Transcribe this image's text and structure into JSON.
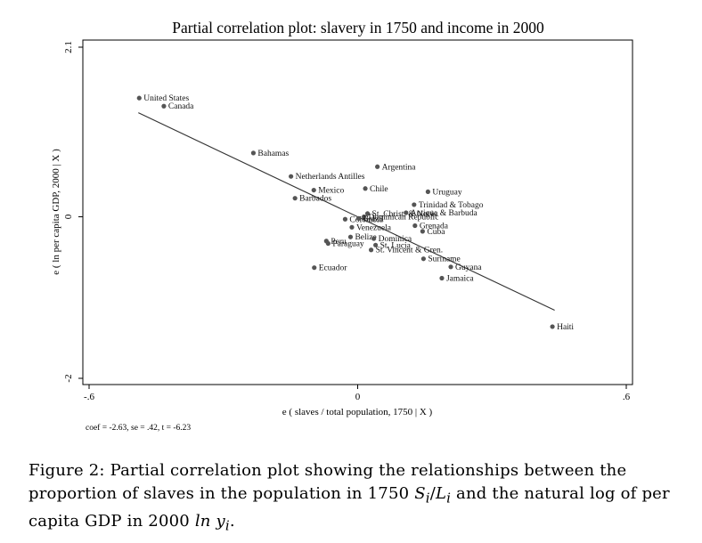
{
  "chart_data": {
    "type": "scatter",
    "title": "Partial correlation plot: slavery in 1750 and income in 2000",
    "xlabel": "e ( slaves / total population, 1750 | X )",
    "ylabel": "e ( ln per capita GDP, 2000 | X )",
    "xlim": [
      -0.6,
      0.6
    ],
    "ylim": [
      -2,
      2.1
    ],
    "xticks": [
      -0.6,
      0,
      0.6
    ],
    "xtick_labels": [
      "-.6",
      "0",
      ".6"
    ],
    "yticks": [
      -2,
      0,
      2.1
    ],
    "ytick_labels": [
      "-2",
      "0",
      "2.1"
    ],
    "grid": false,
    "fit_line": {
      "slope": -2.63,
      "x_start": -0.49,
      "x_end": 0.44
    },
    "stats_note": "coef = -2.63, se = .42, t = -6.23",
    "points": [
      {
        "label": "United States",
        "x": -0.488,
        "y": 1.47
      },
      {
        "label": "Canada",
        "x": -0.433,
        "y": 1.37
      },
      {
        "label": "Bahamas",
        "x": -0.233,
        "y": 0.79
      },
      {
        "label": "Argentina",
        "x": 0.044,
        "y": 0.62
      },
      {
        "label": "Netherlands Antilles",
        "x": -0.149,
        "y": 0.5
      },
      {
        "label": "Mexico",
        "x": -0.098,
        "y": 0.33
      },
      {
        "label": "Chile",
        "x": 0.017,
        "y": 0.35
      },
      {
        "label": "Uruguay",
        "x": 0.157,
        "y": 0.31
      },
      {
        "label": "Barbados",
        "x": -0.14,
        "y": 0.23
      },
      {
        "label": "Trinidad & Tobago",
        "x": 0.126,
        "y": 0.15
      },
      {
        "label": "St. Christ. & Nevis",
        "x": 0.022,
        "y": 0.04
      },
      {
        "label": "Antigua & Barbuda",
        "x": 0.108,
        "y": 0.05
      },
      {
        "label": "Dominican Republic",
        "x": 0.014,
        "y": 0.0
      },
      {
        "label": "Colombia",
        "x": -0.028,
        "y": -0.03
      },
      {
        "label": "Brazil",
        "x": 0.002,
        "y": -0.02
      },
      {
        "label": "Grenada",
        "x": 0.128,
        "y": -0.11
      },
      {
        "label": "Venezuela",
        "x": -0.013,
        "y": -0.13
      },
      {
        "label": "Cuba",
        "x": 0.145,
        "y": -0.18
      },
      {
        "label": "Belize",
        "x": -0.016,
        "y": -0.25
      },
      {
        "label": "Dominica",
        "x": 0.036,
        "y": -0.27
      },
      {
        "label": "Peru",
        "x": -0.07,
        "y": -0.3
      },
      {
        "label": "Paraguay",
        "x": -0.066,
        "y": -0.33
      },
      {
        "label": "St. Lucia",
        "x": 0.04,
        "y": -0.35
      },
      {
        "label": "St. Vincent & Gren.",
        "x": 0.03,
        "y": -0.41
      },
      {
        "label": "Suriname",
        "x": 0.147,
        "y": -0.52
      },
      {
        "label": "Guyana",
        "x": 0.208,
        "y": -0.62
      },
      {
        "label": "Ecuador",
        "x": -0.097,
        "y": -0.63
      },
      {
        "label": "Jamaica",
        "x": 0.188,
        "y": -0.76
      },
      {
        "label": "Haiti",
        "x": 0.435,
        "y": -1.36
      }
    ]
  },
  "caption": {
    "text": "Figure 2:  Partial correlation plot showing the relationships between the proportion of slaves in the population in 1750 ",
    "math1": "S",
    "math1_sub": "i",
    "slash": "/",
    "math2": "L",
    "math2_sub": "i",
    "text2": " and the natural log of per capita GDP in 2000 ",
    "math3": "ln y",
    "math3_sub": "i",
    "text3": "."
  }
}
